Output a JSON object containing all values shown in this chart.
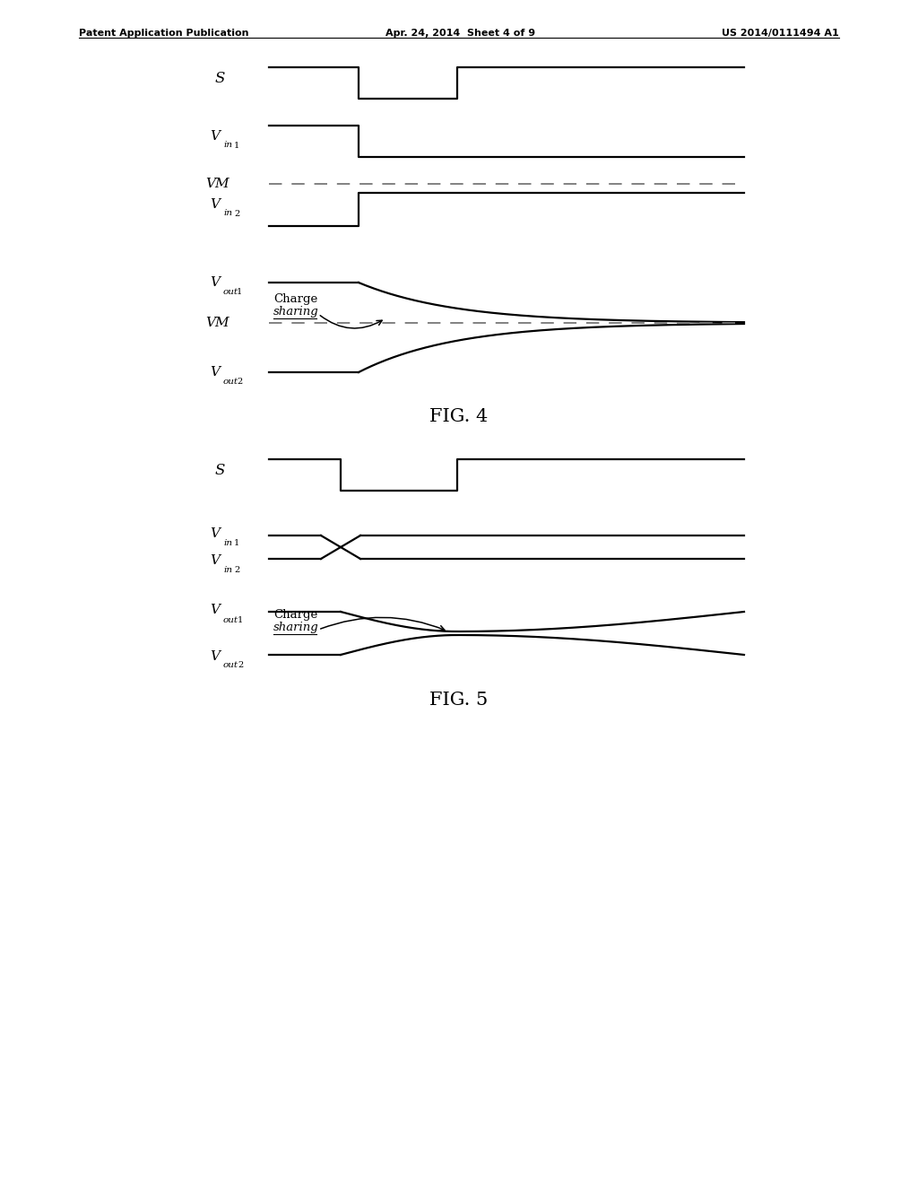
{
  "background_color": "#ffffff",
  "header_left": "Patent Application Publication",
  "header_center": "Apr. 24, 2014  Sheet 4 of 9",
  "header_right": "US 2014/0111494 A1",
  "fig4_title": "FIG. 4",
  "fig5_title": "FIG. 5",
  "line_color": "#000000",
  "dashed_color": "#777777",
  "text_color": "#000000",
  "lw": 1.6
}
